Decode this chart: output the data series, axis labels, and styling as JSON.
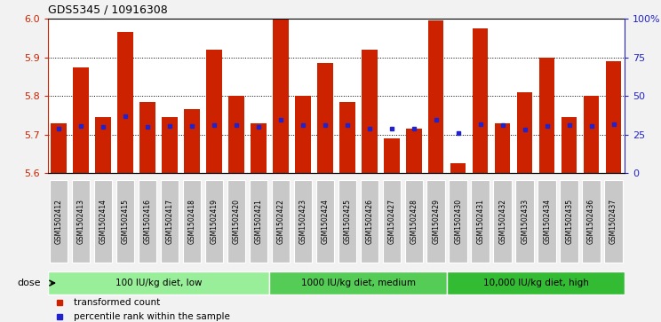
{
  "title": "GDS5345 / 10916308",
  "samples": [
    "GSM1502412",
    "GSM1502413",
    "GSM1502414",
    "GSM1502415",
    "GSM1502416",
    "GSM1502417",
    "GSM1502418",
    "GSM1502419",
    "GSM1502420",
    "GSM1502421",
    "GSM1502422",
    "GSM1502423",
    "GSM1502424",
    "GSM1502425",
    "GSM1502426",
    "GSM1502427",
    "GSM1502428",
    "GSM1502429",
    "GSM1502430",
    "GSM1502431",
    "GSM1502432",
    "GSM1502433",
    "GSM1502434",
    "GSM1502435",
    "GSM1502436",
    "GSM1502437"
  ],
  "bar_values": [
    5.73,
    5.875,
    5.745,
    5.965,
    5.785,
    5.745,
    5.765,
    5.92,
    5.8,
    5.73,
    6.0,
    5.8,
    5.885,
    5.785,
    5.92,
    5.69,
    5.715,
    5.995,
    5.625,
    5.975,
    5.73,
    5.81,
    5.9,
    5.745,
    5.8,
    5.89
  ],
  "blue_dot_values": [
    5.715,
    5.722,
    5.72,
    5.748,
    5.72,
    5.722,
    5.722,
    5.725,
    5.725,
    5.72,
    5.738,
    5.725,
    5.725,
    5.725,
    5.715,
    5.715,
    5.716,
    5.738,
    5.703,
    5.728,
    5.725,
    5.713,
    5.722,
    5.725,
    5.722,
    5.728
  ],
  "ymin": 5.6,
  "ymax": 6.0,
  "yticks": [
    5.6,
    5.7,
    5.8,
    5.9,
    6.0
  ],
  "grid_values": [
    5.7,
    5.8,
    5.9
  ],
  "bar_color": "#CC2200",
  "dot_color": "#2222CC",
  "plot_bg": "#FFFFFF",
  "fig_bg": "#F2F2F2",
  "tick_label_bg": "#C8C8C8",
  "groups": [
    {
      "label": "100 IU/kg diet, low",
      "start": 0,
      "end": 10,
      "color": "#99EE99"
    },
    {
      "label": "1000 IU/kg diet, medium",
      "start": 10,
      "end": 18,
      "color": "#55CC55"
    },
    {
      "label": "10,000 IU/kg diet, high",
      "start": 18,
      "end": 26,
      "color": "#33BB33"
    }
  ],
  "right_yticks_pct": [
    0,
    25,
    50,
    75,
    100
  ],
  "right_yticklabels": [
    "0",
    "25",
    "50",
    "75",
    "100%"
  ],
  "dose_label": "dose",
  "legend_items": [
    {
      "label": "transformed count",
      "color": "#CC2200",
      "marker": "s"
    },
    {
      "label": "percentile rank within the sample",
      "color": "#2222CC",
      "marker": "s"
    }
  ]
}
